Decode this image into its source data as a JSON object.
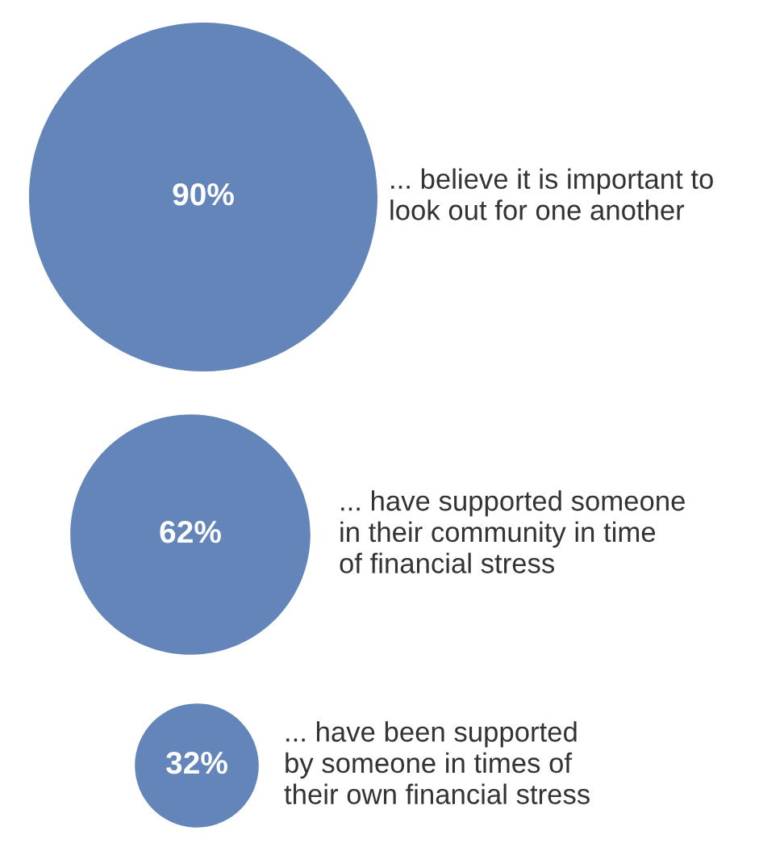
{
  "chart_data": {
    "type": "other",
    "color": "#6385b9",
    "categories": [
      "... believe it is important to\nlook out for one another",
      "... have supported someone\nin their community in time\nof financial stress",
      "... have been supported\nby someone in times of\ntheir own financial stress"
    ],
    "values": [
      90,
      62,
      32
    ],
    "value_labels": [
      "90%",
      "62%",
      "32%"
    ]
  }
}
